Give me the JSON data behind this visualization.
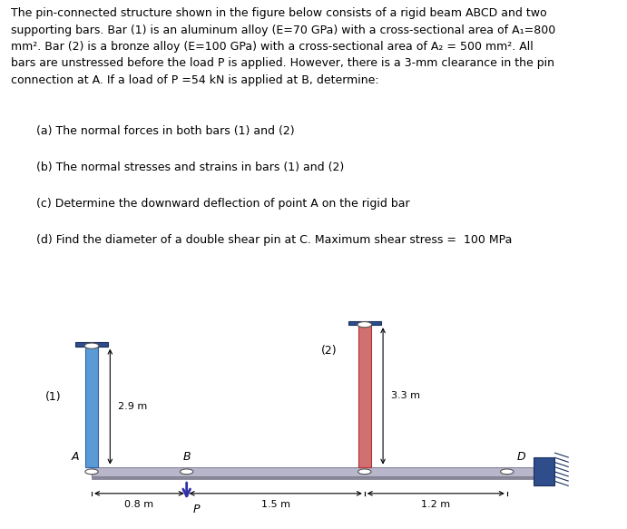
{
  "para_text": "The pin-connected structure shown in the figure below consists of a rigid beam ABCD and two\nsupporting bars. Bar (1) is an aluminum alloy (E=70 GPa) with a cross-sectional area of A₁=800\nmm². Bar (2) is a bronze alloy (E=100 GPa) with a cross-sectional area of A₂ = 500 mm². All\nbars are unstressed before the load P is applied. However, there is a 3-mm clearance in the pin\nconnection at A. If a load of P =54 kN is applied at B, determine:",
  "items": [
    "(a) The normal forces in both bars (1) and (2)",
    "(b) The normal stresses and strains in bars (1) and (2)",
    "(c) Determine the downward deflection of point A on the rigid bar",
    "(d) Find the diameter of a double shear pin at C. Maximum shear stress =  100 MPa"
  ],
  "bg_color": "#ffffff",
  "bar1_color": "#5b9bd5",
  "bar2_color": "#d07070",
  "cap_color": "#2e4d8a",
  "wall_color": "#2e4d8a",
  "beam_top_color": "#b0aec0",
  "beam_bot_color": "#908ea0",
  "text_fontsize": 9.0,
  "item_fontsize": 9.0
}
